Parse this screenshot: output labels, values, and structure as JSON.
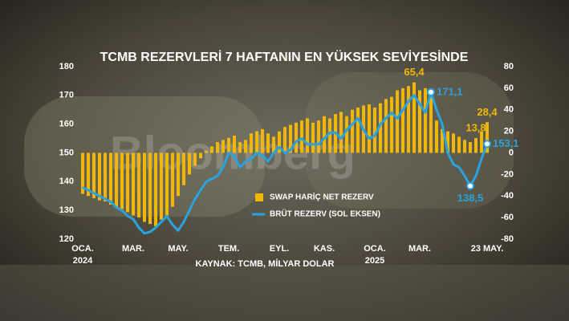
{
  "chart_data": {
    "type": "bar",
    "title": "TCMB REZERVLERİ 7 HAFTANIN EN YÜKSEK SEVİYESİNDE",
    "source": "KAYNAK: TCMB, MİLYAR DOLAR",
    "watermark": "Bloomberg",
    "categories": [
      "OCA. 2024",
      null,
      null,
      null,
      null,
      null,
      null,
      null,
      null,
      "MAR.",
      null,
      null,
      null,
      null,
      null,
      null,
      null,
      "MAY.",
      null,
      null,
      null,
      null,
      null,
      null,
      null,
      null,
      "TEM.",
      null,
      null,
      null,
      null,
      null,
      null,
      null,
      null,
      "EYL.",
      null,
      null,
      null,
      null,
      null,
      null,
      null,
      "KAS.",
      null,
      null,
      null,
      null,
      null,
      null,
      null,
      null,
      "OCA. 2025",
      null,
      null,
      null,
      null,
      null,
      null,
      null,
      "MAR.",
      null,
      null,
      null,
      null,
      null,
      null,
      null,
      null,
      null,
      null,
      null,
      "23 MAY."
    ],
    "ylim": [
      120,
      180
    ],
    "yticks": [
      120,
      130,
      140,
      150,
      160,
      170,
      180
    ],
    "y2lim": [
      -80,
      80
    ],
    "y2ticks": [
      -80,
      -60,
      -40,
      -20,
      0,
      20,
      40,
      60,
      80
    ],
    "series": [
      {
        "name": "SWAP HARİÇ NET REZERV",
        "type": "bar",
        "axis": "y2",
        "color": "#f2b705",
        "values": [
          -38,
          -40,
          -42,
          -44,
          -45,
          -48,
          -50,
          -52,
          -55,
          -58,
          -60,
          -64,
          -66,
          -68,
          -62,
          -58,
          -50,
          -40,
          -30,
          -20,
          -12,
          -5,
          2,
          6,
          10,
          12,
          14,
          16,
          10,
          12,
          18,
          20,
          22,
          18,
          15,
          20,
          24,
          26,
          28,
          30,
          32,
          28,
          30,
          34,
          32,
          36,
          38,
          34,
          40,
          42,
          44,
          45,
          42,
          46,
          50,
          52,
          58,
          60,
          62,
          65.4,
          58,
          60,
          52,
          30,
          22,
          20,
          18,
          15,
          12,
          10,
          13.8,
          20,
          28.4
        ],
        "value_labels": [
          null,
          null,
          null,
          null,
          null,
          null,
          null,
          null,
          null,
          null,
          null,
          null,
          null,
          null,
          null,
          null,
          null,
          null,
          null,
          null,
          null,
          null,
          null,
          null,
          null,
          null,
          null,
          null,
          null,
          null,
          null,
          null,
          null,
          null,
          null,
          null,
          null,
          null,
          null,
          null,
          null,
          null,
          null,
          null,
          null,
          null,
          null,
          null,
          null,
          null,
          null,
          null,
          null,
          null,
          null,
          null,
          null,
          null,
          null,
          "65,4",
          null,
          null,
          null,
          null,
          null,
          null,
          null,
          null,
          null,
          null,
          "13,8",
          null,
          "28,4"
        ]
      },
      {
        "name": "BRÜT REZERV (SOL EKSEN)",
        "type": "line",
        "axis": "y",
        "color": "#29a3df",
        "values": [
          138,
          137,
          136,
          135,
          134,
          133,
          131,
          130,
          128,
          127,
          124,
          122,
          122.5,
          124,
          126,
          128,
          125,
          123,
          126,
          130,
          134,
          137,
          140,
          141,
          142,
          145,
          150,
          149,
          145,
          147,
          148,
          150,
          149,
          147,
          150,
          152,
          150,
          151,
          154,
          155,
          153,
          153,
          153,
          155,
          157,
          157,
          155,
          158,
          160,
          162,
          158,
          155,
          156,
          160,
          162,
          164,
          162,
          165,
          168,
          170,
          167,
          164,
          171.1,
          165,
          160,
          150,
          146,
          145,
          142,
          138.5,
          142,
          148,
          153.1
        ],
        "value_labels": [
          null,
          null,
          null,
          null,
          null,
          null,
          null,
          null,
          null,
          null,
          null,
          null,
          null,
          null,
          null,
          null,
          null,
          null,
          null,
          null,
          null,
          null,
          null,
          null,
          null,
          null,
          null,
          null,
          null,
          null,
          null,
          null,
          null,
          null,
          null,
          null,
          null,
          null,
          null,
          null,
          null,
          null,
          null,
          null,
          null,
          null,
          null,
          null,
          null,
          null,
          null,
          null,
          null,
          null,
          null,
          null,
          null,
          null,
          null,
          null,
          null,
          null,
          "171,1",
          null,
          null,
          null,
          null,
          null,
          null,
          "138,5",
          null,
          null,
          "153,1"
        ]
      }
    ]
  }
}
